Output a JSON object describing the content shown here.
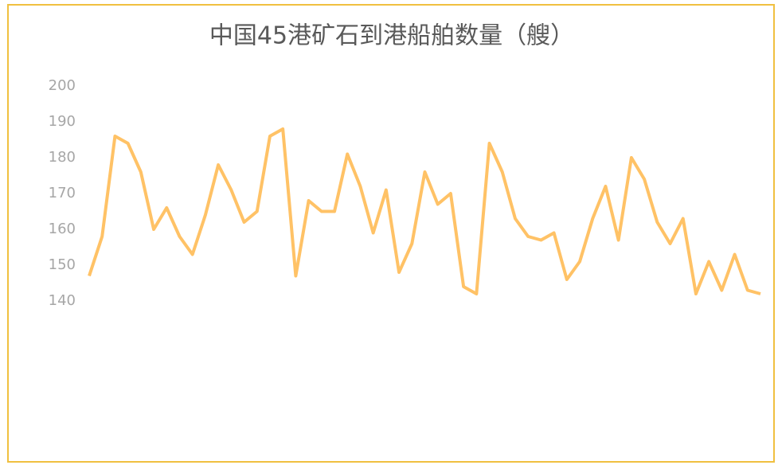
{
  "chart_data": {
    "type": "line",
    "title": "中国45港矿石到港船舶数量（艘）",
    "values": [
      147,
      158,
      186,
      184,
      176,
      160,
      166,
      158,
      153,
      164,
      178,
      171,
      162,
      165,
      186,
      188,
      147,
      168,
      165,
      165,
      181,
      172,
      159,
      171,
      148,
      156,
      176,
      167,
      170,
      144,
      142,
      184,
      176,
      163,
      158,
      157,
      159,
      146,
      151,
      163,
      172,
      157,
      180,
      174,
      162,
      156,
      163,
      142,
      151,
      143,
      153,
      143,
      142
    ],
    "color": "#ffc266",
    "ylim": [
      140,
      200
    ],
    "yticks": [
      140,
      150,
      160,
      170,
      180,
      190,
      200
    ],
    "grid": false
  }
}
